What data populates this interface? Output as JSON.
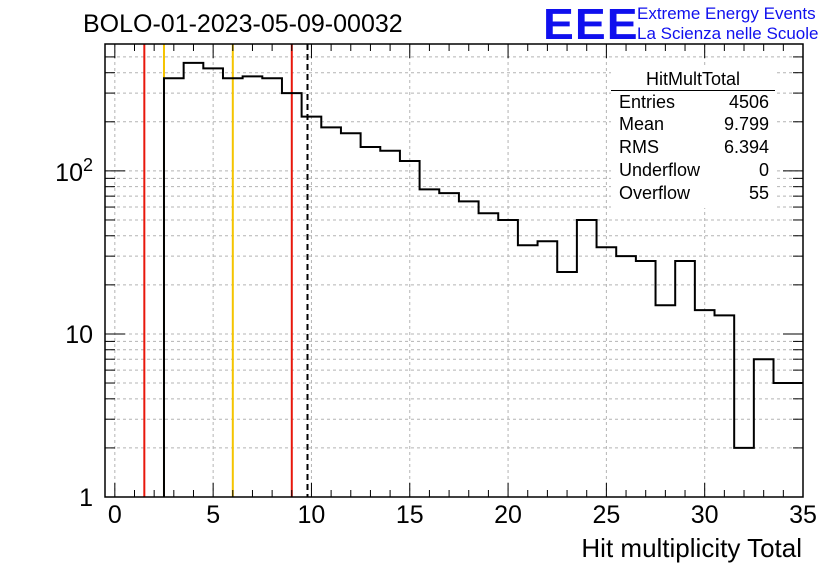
{
  "header": {
    "run_title": "BOLO-01-2023-05-09-00032",
    "logo_text": "EEE",
    "logo_line1": "Extreme Energy Events",
    "logo_line2": "La Scienza nelle Scuole",
    "logo_color": "#1010ee"
  },
  "stats": {
    "title": "HitMultTotal",
    "rows": [
      {
        "label": "Entries",
        "value": "4506"
      },
      {
        "label": "Mean",
        "value": "9.799"
      },
      {
        "label": "RMS",
        "value": "6.394"
      },
      {
        "label": "Underflow",
        "value": "0"
      },
      {
        "label": "Overflow",
        "value": "55"
      }
    ]
  },
  "chart_data": {
    "type": "bar",
    "histogram": true,
    "xlabel": "Hit multiplicity Total",
    "ylabel": "",
    "xlim": [
      -0.5,
      35
    ],
    "ylim": [
      1,
      600
    ],
    "log_y": true,
    "grid": true,
    "x_ticks": [
      0,
      5,
      10,
      15,
      20,
      25,
      30,
      35
    ],
    "x_tick_labels": [
      "0",
      "5",
      "10",
      "15",
      "20",
      "25",
      "30",
      "35"
    ],
    "y_ticks": [
      1,
      10,
      100
    ],
    "y_tick_labels": [
      "1",
      "10",
      "10^2"
    ],
    "bin_width": 1,
    "bin_centers": [
      3,
      4,
      5,
      6,
      7,
      8,
      9,
      10,
      11,
      12,
      13,
      14,
      15,
      16,
      17,
      18,
      19,
      20,
      21,
      22,
      23,
      24,
      25,
      26,
      27,
      28,
      29,
      30,
      31,
      32,
      33,
      34
    ],
    "values": [
      370,
      460,
      425,
      370,
      380,
      370,
      300,
      215,
      185,
      170,
      140,
      133,
      115,
      77,
      73,
      65,
      55,
      50,
      35,
      37,
      24,
      50,
      34,
      30,
      28,
      15,
      28,
      14,
      13,
      2,
      7,
      5
    ],
    "reference_lines": [
      {
        "x": 1.5,
        "color": "#e8180c",
        "style": "solid"
      },
      {
        "x": 2.5,
        "color": "#f5c400",
        "style": "solid"
      },
      {
        "x": 6.0,
        "color": "#f5c400",
        "style": "solid"
      },
      {
        "x": 9.0,
        "color": "#e8180c",
        "style": "solid"
      },
      {
        "x": 9.799,
        "color": "#000000",
        "style": "dashed"
      }
    ],
    "colors": {
      "histogram": "#000000",
      "grid": "#b4b4b4"
    }
  }
}
